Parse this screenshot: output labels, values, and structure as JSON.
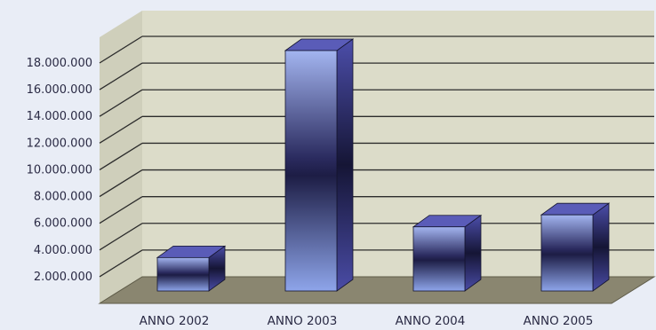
{
  "chart_data": {
    "type": "bar",
    "categories": [
      "ANNO 2002",
      "ANNO 2003",
      "ANNO 2004",
      "ANNO 2005"
    ],
    "values": [
      2500000,
      18000000,
      4800000,
      5700000
    ],
    "ylim": [
      0,
      18000000
    ],
    "y_ticks": [
      {
        "value": 2000000,
        "label": "2.000.000"
      },
      {
        "value": 4000000,
        "label": "4.000.000"
      },
      {
        "value": 6000000,
        "label": "6.000.000"
      },
      {
        "value": 8000000,
        "label": "8.000.000"
      },
      {
        "value": 10000000,
        "label": "10.000.000"
      },
      {
        "value": 12000000,
        "label": "12.000.000"
      },
      {
        "value": 14000000,
        "label": "14.000.000"
      },
      {
        "value": 16000000,
        "label": "16.000.000"
      },
      {
        "value": 18000000,
        "label": "18.000.000"
      }
    ],
    "grid": true,
    "style": "3d",
    "colors": {
      "background": "#e9edf6",
      "wall": "#dcdcc9",
      "floor": "#8a8670",
      "bar_light": "#8fa6ec",
      "bar_dark": "#1f1f4a",
      "bar_side": "#3a3a86",
      "bar_top": "#5a5cb8",
      "grid": "#2c2c2c"
    }
  }
}
